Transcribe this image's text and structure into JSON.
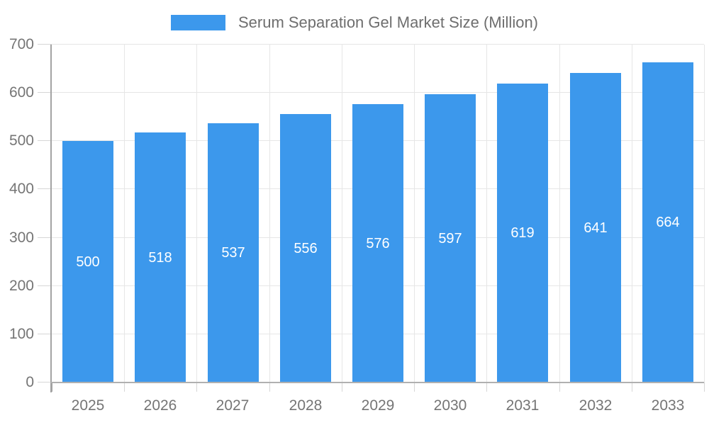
{
  "chart_data": {
    "type": "bar",
    "title": "",
    "series_name": "Serum Separation Gel Market Size (Million)",
    "categories": [
      "2025",
      "2026",
      "2027",
      "2028",
      "2029",
      "2030",
      "2031",
      "2032",
      "2033"
    ],
    "values": [
      500,
      518,
      537,
      556,
      576,
      597,
      619,
      641,
      664
    ],
    "ylim": [
      0,
      700
    ],
    "ytick_step": 100,
    "yticks": [
      0,
      100,
      200,
      300,
      400,
      500,
      600,
      700
    ],
    "grid": true,
    "legend_position": "top-center",
    "value_label_position": "inside-center",
    "colors": {
      "bar": "#3C98EC",
      "value_label": "#FFFFFF",
      "axis_line": "#A3A3A3",
      "grid_line": "#E6E6E6",
      "tick_line": "#D6D6D6",
      "tick_label": "#757575",
      "legend_text": "#6E6E6E",
      "background": "#FFFFFF"
    }
  }
}
